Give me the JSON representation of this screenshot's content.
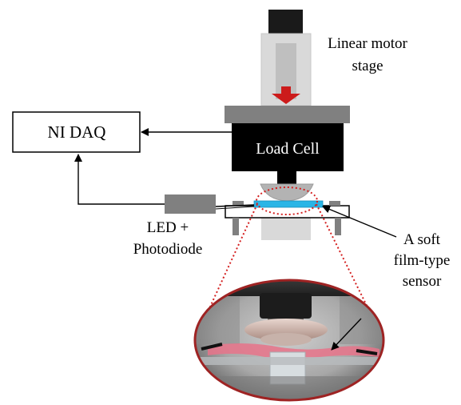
{
  "labels": {
    "linear_motor_stage_line1": "Linear motor",
    "linear_motor_stage_line2": "stage",
    "ni_daq": "NI DAQ",
    "load_cell": "Load Cell",
    "led_photodiode_line1": "LED +",
    "led_photodiode_line2": "Photodiode",
    "sensor_line1": "A soft",
    "sensor_line2": "film-type",
    "sensor_line3": "sensor"
  },
  "colors": {
    "motor_top": "#1a1a1a",
    "rail": "#d9d9d9",
    "rail_inner": "#bfbfbf",
    "plate": "#808080",
    "load_cell": "#000000",
    "film": "#2ab5e6",
    "arrow_red": "#cc1b1b",
    "dotted_red": "#d42020",
    "photo_ring": "#9e2323",
    "daq_box_border": "#000000"
  },
  "icons": {
    "down_arrow": "down-arrow-icon"
  }
}
